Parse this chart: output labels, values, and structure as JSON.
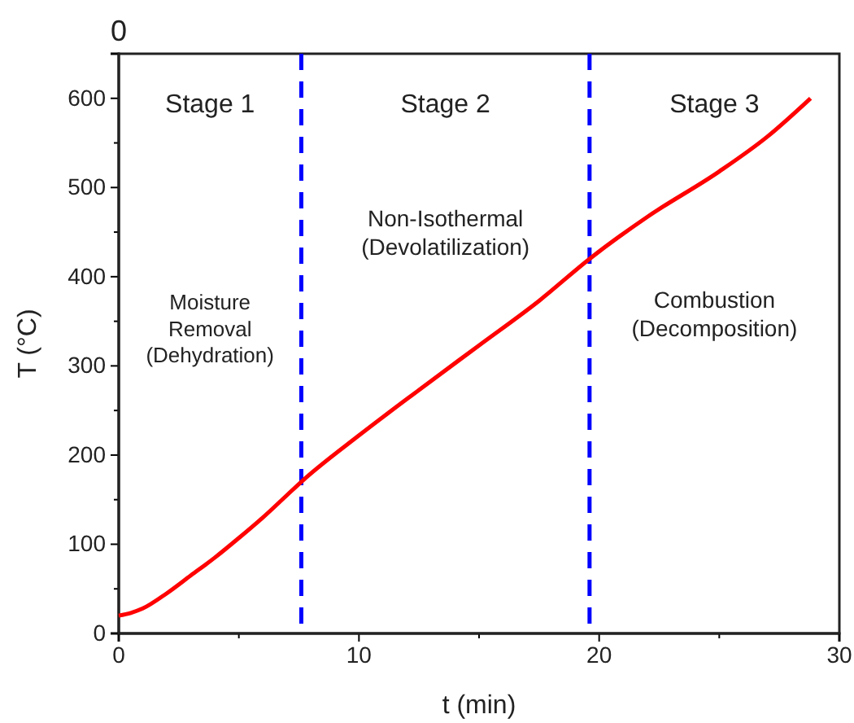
{
  "chart_data": {
    "type": "line",
    "xlabel": "t (min)",
    "ylabel": "T (°C)",
    "xlim": [
      0,
      30
    ],
    "ylim": [
      0,
      650
    ],
    "xticks": [
      0,
      {
        "value": 5,
        "label": null
      },
      10,
      {
        "value": 15,
        "label": null
      },
      20,
      {
        "value": 25,
        "label": null
      },
      30
    ],
    "yticks": [
      0,
      {
        "value": 50,
        "label": null
      },
      100,
      {
        "value": 150,
        "label": null
      },
      200,
      {
        "value": 250,
        "label": null
      },
      300,
      {
        "value": 350,
        "label": null
      },
      400,
      {
        "value": 450,
        "label": null
      },
      500,
      {
        "value": 550,
        "label": null
      },
      600
    ],
    "series": [
      {
        "color": "#ff0000",
        "x": [
          0,
          0.5,
          1,
          2,
          3,
          4,
          5,
          6,
          7,
          7.6,
          10,
          12.5,
          15,
          17.5,
          19.6,
          22,
          25,
          27,
          28.8
        ],
        "values": [
          20,
          23,
          28,
          45,
          65,
          85,
          107,
          130,
          155,
          170,
          222,
          273,
          323,
          373,
          420,
          467,
          518,
          557,
          600
        ]
      }
    ],
    "ref_lines": [
      {
        "axis": "x",
        "value": 7.6,
        "color": "#0000ff",
        "line_style": "dashed"
      },
      {
        "axis": "x",
        "value": 19.6,
        "color": "#0000ff",
        "line_style": "dashed"
      }
    ],
    "annotations": [
      "0",
      "Stage 1",
      "Stage 2",
      "Stage 3",
      "Moisture\nRemoval\n(Dehydration)",
      "Non-Isothermal\n(Devolatilization)",
      "Combustion\n(Decomposition)"
    ],
    "grid": false,
    "marker": "none",
    "line_style": "solid"
  }
}
